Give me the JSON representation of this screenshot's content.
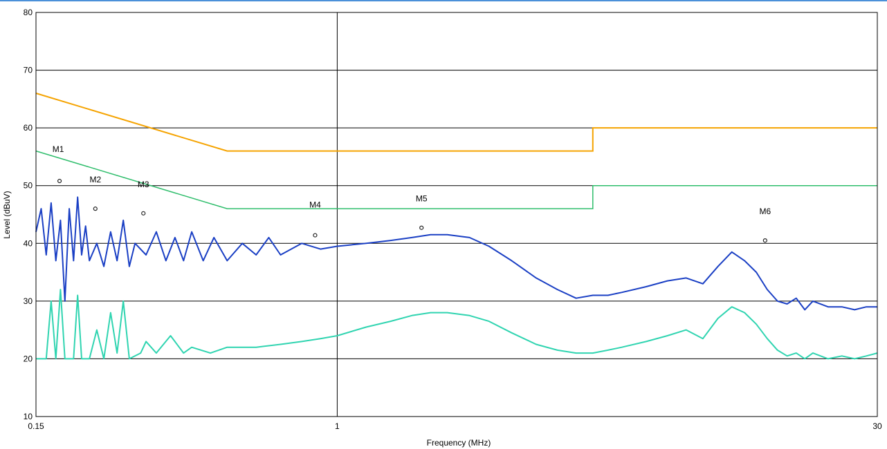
{
  "chart_data": {
    "type": "line",
    "title": "",
    "xlabel": "Frequency (MHz)",
    "ylabel": "Level (dBuV)",
    "x_scale": "log",
    "xlim": [
      0.15,
      30
    ],
    "ylim": [
      10,
      80
    ],
    "grid": true,
    "x_ticks": [
      {
        "value": 0.15,
        "label": "0.15"
      },
      {
        "value": 1,
        "label": "1"
      },
      {
        "value": 30,
        "label": "30"
      }
    ],
    "y_ticks": [
      {
        "value": 10,
        "label": "10"
      },
      {
        "value": 20,
        "label": "20"
      },
      {
        "value": 30,
        "label": "30"
      },
      {
        "value": 40,
        "label": "40"
      },
      {
        "value": 50,
        "label": "50"
      },
      {
        "value": 60,
        "label": "60"
      },
      {
        "value": 70,
        "label": "70"
      },
      {
        "value": 80,
        "label": "80"
      }
    ],
    "limit_lines": [
      {
        "color": "#f5a300",
        "points": [
          [
            0.15,
            66
          ],
          [
            0.5,
            56
          ],
          [
            5,
            56
          ],
          [
            5,
            60
          ],
          [
            30,
            60
          ]
        ]
      },
      {
        "color": "#2ebd6b",
        "points": [
          [
            0.15,
            56
          ],
          [
            0.5,
            46
          ],
          [
            5,
            46
          ],
          [
            5,
            50
          ],
          [
            30,
            50
          ]
        ]
      }
    ],
    "series": [
      {
        "color": "#1a3fc4",
        "points": [
          [
            0.15,
            42
          ],
          [
            0.155,
            46
          ],
          [
            0.16,
            38
          ],
          [
            0.165,
            47
          ],
          [
            0.17,
            37
          ],
          [
            0.175,
            44
          ],
          [
            0.18,
            30
          ],
          [
            0.185,
            46
          ],
          [
            0.19,
            37
          ],
          [
            0.195,
            48
          ],
          [
            0.2,
            38
          ],
          [
            0.205,
            43
          ],
          [
            0.21,
            37
          ],
          [
            0.22,
            40
          ],
          [
            0.23,
            36
          ],
          [
            0.24,
            42
          ],
          [
            0.25,
            37
          ],
          [
            0.26,
            44
          ],
          [
            0.27,
            36
          ],
          [
            0.28,
            40
          ],
          [
            0.3,
            38
          ],
          [
            0.32,
            42
          ],
          [
            0.34,
            37
          ],
          [
            0.36,
            41
          ],
          [
            0.38,
            37
          ],
          [
            0.4,
            42
          ],
          [
            0.43,
            37
          ],
          [
            0.46,
            41
          ],
          [
            0.5,
            37
          ],
          [
            0.55,
            40
          ],
          [
            0.6,
            38
          ],
          [
            0.65,
            41
          ],
          [
            0.7,
            38
          ],
          [
            0.8,
            40
          ],
          [
            0.9,
            39
          ],
          [
            1.0,
            39.5
          ],
          [
            1.2,
            40
          ],
          [
            1.4,
            40.5
          ],
          [
            1.6,
            41
          ],
          [
            1.8,
            41.5
          ],
          [
            2.0,
            41.5
          ],
          [
            2.3,
            41
          ],
          [
            2.6,
            39.5
          ],
          [
            3.0,
            37
          ],
          [
            3.5,
            34
          ],
          [
            4.0,
            32
          ],
          [
            4.5,
            30.5
          ],
          [
            5.0,
            31
          ],
          [
            5.5,
            31
          ],
          [
            6.0,
            31.5
          ],
          [
            7.0,
            32.5
          ],
          [
            8.0,
            33.5
          ],
          [
            9.0,
            34
          ],
          [
            10.0,
            33
          ],
          [
            11.0,
            36
          ],
          [
            12.0,
            38.5
          ],
          [
            13.0,
            37
          ],
          [
            14.0,
            35
          ],
          [
            15.0,
            32
          ],
          [
            16.0,
            30
          ],
          [
            17.0,
            29.5
          ],
          [
            18.0,
            30.5
          ],
          [
            19.0,
            28.5
          ],
          [
            20.0,
            30
          ],
          [
            22.0,
            29
          ],
          [
            24.0,
            29
          ],
          [
            26.0,
            28.5
          ],
          [
            28.0,
            29
          ],
          [
            30.0,
            29
          ]
        ]
      },
      {
        "color": "#2fd4b0",
        "points": [
          [
            0.15,
            20
          ],
          [
            0.16,
            20
          ],
          [
            0.165,
            30
          ],
          [
            0.17,
            20
          ],
          [
            0.175,
            32
          ],
          [
            0.18,
            20
          ],
          [
            0.19,
            20
          ],
          [
            0.195,
            31
          ],
          [
            0.2,
            20
          ],
          [
            0.21,
            20
          ],
          [
            0.22,
            25
          ],
          [
            0.23,
            20
          ],
          [
            0.24,
            28
          ],
          [
            0.25,
            21
          ],
          [
            0.26,
            30
          ],
          [
            0.27,
            20
          ],
          [
            0.29,
            21
          ],
          [
            0.3,
            23
          ],
          [
            0.32,
            21
          ],
          [
            0.35,
            24
          ],
          [
            0.38,
            21
          ],
          [
            0.4,
            22
          ],
          [
            0.45,
            21
          ],
          [
            0.5,
            22
          ],
          [
            0.6,
            22
          ],
          [
            0.7,
            22.5
          ],
          [
            0.8,
            23
          ],
          [
            0.9,
            23.5
          ],
          [
            1.0,
            24
          ],
          [
            1.2,
            25.5
          ],
          [
            1.4,
            26.5
          ],
          [
            1.6,
            27.5
          ],
          [
            1.8,
            28
          ],
          [
            2.0,
            28
          ],
          [
            2.3,
            27.5
          ],
          [
            2.6,
            26.5
          ],
          [
            3.0,
            24.5
          ],
          [
            3.5,
            22.5
          ],
          [
            4.0,
            21.5
          ],
          [
            4.5,
            21
          ],
          [
            5.0,
            21
          ],
          [
            5.5,
            21.5
          ],
          [
            6.0,
            22
          ],
          [
            7.0,
            23
          ],
          [
            8.0,
            24
          ],
          [
            9.0,
            25
          ],
          [
            10.0,
            23.5
          ],
          [
            11.0,
            27
          ],
          [
            12.0,
            29
          ],
          [
            13.0,
            28
          ],
          [
            14.0,
            26
          ],
          [
            15.0,
            23.5
          ],
          [
            16.0,
            21.5
          ],
          [
            17.0,
            20.5
          ],
          [
            18.0,
            21
          ],
          [
            19.0,
            20
          ],
          [
            20.0,
            21
          ],
          [
            22.0,
            20
          ],
          [
            24.0,
            20.5
          ],
          [
            26.0,
            20
          ],
          [
            28.0,
            20.5
          ],
          [
            30.0,
            21
          ]
        ]
      }
    ],
    "markers": [
      {
        "label": "M1",
        "x": 0.174,
        "y": 50.8
      },
      {
        "label": "M2",
        "x": 0.218,
        "y": 46
      },
      {
        "label": "M3",
        "x": 0.295,
        "y": 45.2
      },
      {
        "label": "M4",
        "x": 0.87,
        "y": 41.4
      },
      {
        "label": "M5",
        "x": 1.7,
        "y": 42.7
      },
      {
        "label": "M6",
        "x": 14.8,
        "y": 40.5
      }
    ]
  }
}
